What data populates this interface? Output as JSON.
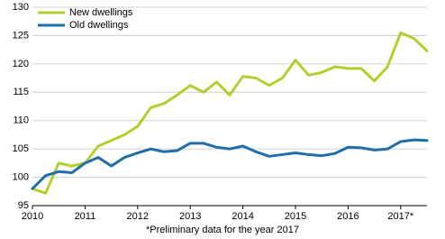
{
  "chart_data": {
    "type": "line",
    "x": [
      2010,
      2010.25,
      2010.5,
      2010.75,
      2011,
      2011.25,
      2011.5,
      2011.75,
      2012,
      2012.25,
      2012.5,
      2012.75,
      2013,
      2013.25,
      2013.5,
      2013.75,
      2014,
      2014.25,
      2014.5,
      2014.75,
      2015,
      2015.25,
      2015.5,
      2015.75,
      2016,
      2016.25,
      2016.5,
      2016.75,
      2017,
      2017.25,
      2017.5
    ],
    "series": [
      {
        "name": "New dwellings",
        "color": "#b3cf2f",
        "values": [
          98,
          97.2,
          102.5,
          102,
          102.5,
          105.5,
          106.5,
          107.5,
          109,
          112.3,
          113,
          114.5,
          116.2,
          115,
          116.8,
          114.5,
          117.8,
          117.5,
          116.2,
          117.5,
          120.7,
          118,
          118.5,
          119.5,
          119.2,
          119.2,
          117,
          119.5,
          125.5,
          124.5,
          122.3
        ]
      },
      {
        "name": "Old dwellings",
        "color": "#1f6ea8",
        "values": [
          98,
          100.3,
          101,
          100.8,
          102.5,
          103.5,
          102,
          103.5,
          104.3,
          105,
          104.5,
          104.7,
          106,
          106,
          105.3,
          105,
          105.5,
          104.5,
          103.7,
          104,
          104.3,
          104,
          103.8,
          104.2,
          105.3,
          105.2,
          104.8,
          105,
          106.3,
          106.6,
          106.5
        ]
      }
    ],
    "xlim": [
      2010,
      2017.5
    ],
    "xticks": [
      2010,
      2011,
      2012,
      2013,
      2014,
      2015,
      2016,
      {
        "value": 2017,
        "label": "2017*"
      }
    ],
    "ylim": [
      95,
      130
    ],
    "yticks": [
      95,
      100,
      105,
      110,
      115,
      120,
      125,
      130
    ],
    "grid": true,
    "legend": "upper left",
    "note": "*Preliminary data for the year 2017"
  }
}
